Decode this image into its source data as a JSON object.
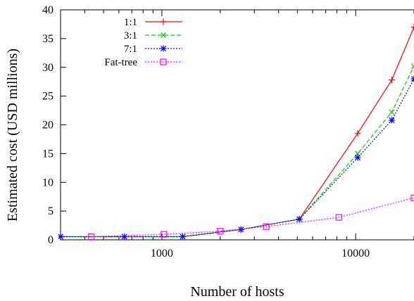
{
  "chart_data": {
    "type": "line",
    "xlabel": "Number of hosts",
    "ylabel": "Estimated cost (USD millions)",
    "xscale": "log",
    "xlim": [
      300,
      20000
    ],
    "ylim": [
      0,
      40
    ],
    "x_ticks": [
      1000,
      10000
    ],
    "x_tick_labels": [
      "1000",
      "10000"
    ],
    "y_ticks": [
      0,
      5,
      10,
      15,
      20,
      25,
      30,
      35,
      40
    ],
    "y_tick_labels": [
      "0",
      "5",
      "10",
      "15",
      "20",
      "25",
      "30",
      "35",
      "40"
    ],
    "legend_position": "top-left",
    "series": [
      {
        "name": "1:1",
        "color": "#ff0000",
        "marker": "plus",
        "dash": "solid",
        "points": [
          [
            300,
            0.55
          ],
          [
            640,
            0.55
          ],
          [
            1280,
            0.55
          ],
          [
            2560,
            1.8
          ],
          [
            5120,
            3.6
          ],
          [
            10240,
            18.5
          ],
          [
            15360,
            27.8
          ],
          [
            20000,
            37
          ]
        ]
      },
      {
        "name": "3:1",
        "color": "#00cc00",
        "marker": "cross",
        "dash": "dashed",
        "points": [
          [
            300,
            0.55
          ],
          [
            640,
            0.55
          ],
          [
            1280,
            0.55
          ],
          [
            2560,
            1.8
          ],
          [
            5120,
            3.6
          ],
          [
            10240,
            15
          ],
          [
            15360,
            22.2
          ],
          [
            20000,
            30.2
          ]
        ]
      },
      {
        "name": "7:1",
        "color": "#0000ff",
        "marker": "star",
        "dash": "dotted",
        "points": [
          [
            300,
            0.55
          ],
          [
            640,
            0.55
          ],
          [
            1280,
            0.55
          ],
          [
            2560,
            1.8
          ],
          [
            5120,
            3.6
          ],
          [
            10240,
            14.3
          ],
          [
            15360,
            20.8
          ],
          [
            20000,
            28
          ]
        ]
      },
      {
        "name": "Fat-tree",
        "color": "#ff00ff",
        "marker": "square",
        "dash": "dotted",
        "points": [
          [
            432,
            0.55
          ],
          [
            1024,
            0.95
          ],
          [
            2000,
            1.5
          ],
          [
            3456,
            2.3
          ],
          [
            8192,
            3.9
          ],
          [
            20000,
            7.3
          ]
        ]
      }
    ]
  }
}
